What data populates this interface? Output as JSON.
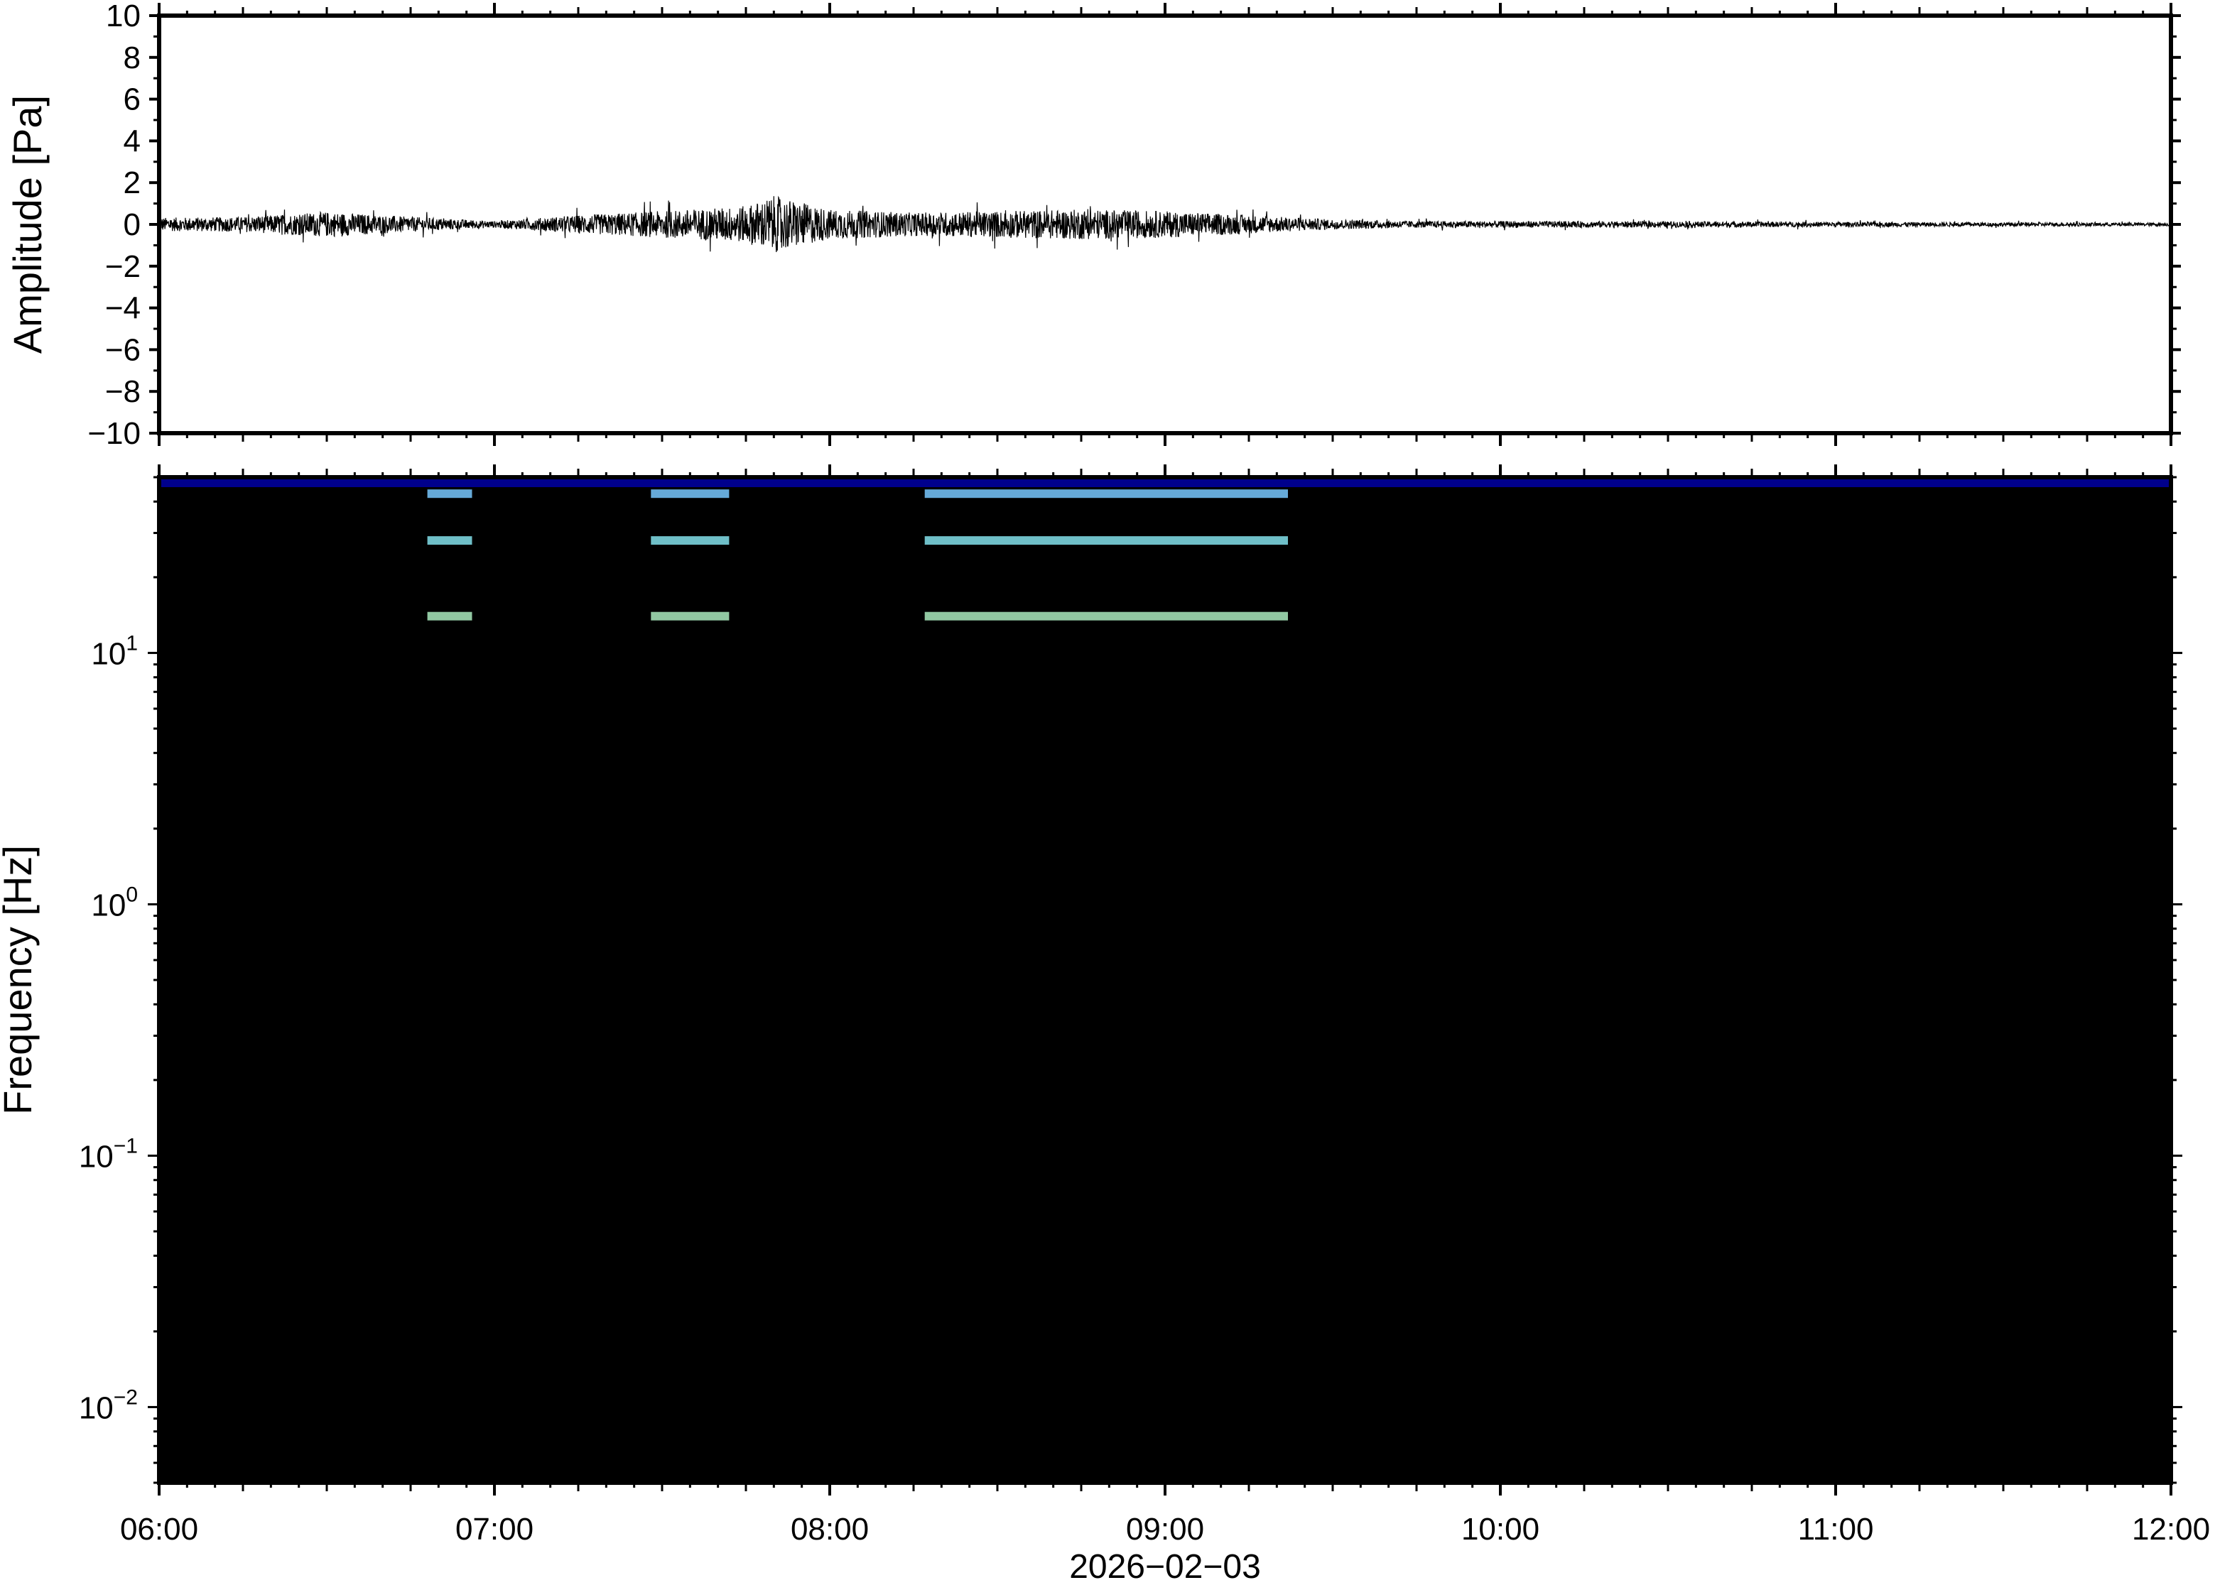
{
  "chart_data": [
    {
      "type": "line",
      "panel": "waveform",
      "title": "",
      "xlabel": "",
      "ylabel": "Amplitude [Pa]",
      "xlim": [
        "06:00",
        "12:00"
      ],
      "ylim": [
        -10,
        10
      ],
      "y_ticks": [
        10,
        8,
        6,
        4,
        2,
        0,
        -2,
        -4,
        -6,
        -8,
        -10
      ],
      "y_tick_labels": [
        "10",
        "8",
        "6",
        "4",
        "2",
        "0",
        "−2",
        "−4",
        "−6",
        "−8",
        "−10"
      ],
      "grid": false,
      "line_color": "#000000",
      "series": [
        {
          "x": [
            "06:00",
            "06:15",
            "06:30",
            "06:45",
            "07:00",
            "07:15",
            "07:30",
            "07:45",
            "07:50",
            "08:00",
            "08:15",
            "08:30",
            "08:45",
            "09:00",
            "09:15",
            "09:30",
            "09:45",
            "10:00",
            "10:30",
            "11:00",
            "11:30",
            "12:00"
          ],
          "envelope": [
            0.4,
            0.45,
            0.75,
            0.45,
            0.2,
            0.55,
            0.8,
            1.1,
            1.7,
            0.9,
            0.7,
            0.8,
            0.9,
            0.8,
            0.55,
            0.3,
            0.2,
            0.2,
            0.18,
            0.15,
            0.12,
            0.1
          ]
        }
      ]
    },
    {
      "type": "heatmap",
      "panel": "spectrogram",
      "title": "",
      "xlabel": "2026−02−03",
      "ylabel": "Frequency [Hz]",
      "x_ticks": [
        "06:00",
        "07:00",
        "08:00",
        "09:00",
        "10:00",
        "11:00",
        "12:00"
      ],
      "y_scale": "log",
      "ylim": [
        0.005,
        50
      ],
      "y_ticks": [
        {
          "base": "10",
          "exp": "1"
        },
        {
          "base": "10",
          "exp": "0"
        },
        {
          "base": "10",
          "exp": "−1"
        },
        {
          "base": "10",
          "exp": "−2"
        }
      ],
      "colormap": "jet-like",
      "color_low": "#00007f",
      "color_high": "#e8333a",
      "grid": false,
      "tonal_lines_hz": [
        14,
        28,
        43
      ],
      "tonal_intervals": [
        [
          "06:48",
          "06:56"
        ],
        [
          "07:28",
          "07:42"
        ],
        [
          "08:17",
          "09:22"
        ]
      ]
    }
  ],
  "colors": {
    "frame": "#000000",
    "background": "#ffffff"
  }
}
